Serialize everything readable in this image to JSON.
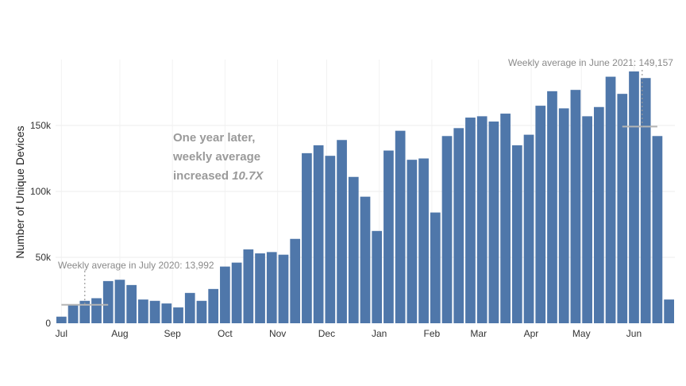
{
  "chart_data": {
    "type": "bar",
    "ylabel": "Number of Unique Devices",
    "xlabel": "",
    "ylim": [
      0,
      200000
    ],
    "yticks": [
      0,
      50000,
      100000,
      150000
    ],
    "ytick_labels": [
      "0",
      "50k",
      "100k",
      "150k"
    ],
    "grid": true,
    "bar_color": "#4f77aa",
    "month_labels": [
      {
        "label": "Jul",
        "week_index": 0
      },
      {
        "label": "Aug",
        "week_index": 5
      },
      {
        "label": "Sep",
        "week_index": 9.5
      },
      {
        "label": "Oct",
        "week_index": 14
      },
      {
        "label": "Nov",
        "week_index": 18.5
      },
      {
        "label": "Dec",
        "week_index": 22.7
      },
      {
        "label": "Jan",
        "week_index": 27.2
      },
      {
        "label": "Feb",
        "week_index": 31.7
      },
      {
        "label": "Mar",
        "week_index": 35.7
      },
      {
        "label": "Apr",
        "week_index": 40.2
      },
      {
        "label": "May",
        "week_index": 44.5
      },
      {
        "label": "Jun",
        "week_index": 49
      }
    ],
    "values": [
      5000,
      14000,
      17000,
      19000,
      32000,
      33000,
      29000,
      18000,
      17000,
      15000,
      12000,
      23000,
      17000,
      26000,
      43000,
      46000,
      56000,
      53000,
      54000,
      52000,
      64000,
      129000,
      135000,
      127000,
      139000,
      111000,
      96000,
      70000,
      131000,
      146000,
      124000,
      125000,
      84000,
      142000,
      148000,
      156000,
      157000,
      153000,
      159000,
      135000,
      143000,
      165000,
      176000,
      163000,
      177000,
      157000,
      164000,
      187000,
      174000,
      191000,
      186000,
      142000,
      18000
    ],
    "averages": [
      {
        "label": "Weekly average in July 2020: 13,992",
        "value": 13992,
        "start_week": 0.5,
        "end_week": 4.5,
        "marker_week": 2.5
      },
      {
        "label": "Weekly average in June 2021: 149,157",
        "value": 149157,
        "start_week": 48.5,
        "end_week": 51.5,
        "marker_week": 50.2
      }
    ],
    "callout": {
      "line1": "One year later,",
      "line2": "weekly average",
      "line3_prefix": "increased ",
      "line3_emph": "10.7X"
    }
  }
}
